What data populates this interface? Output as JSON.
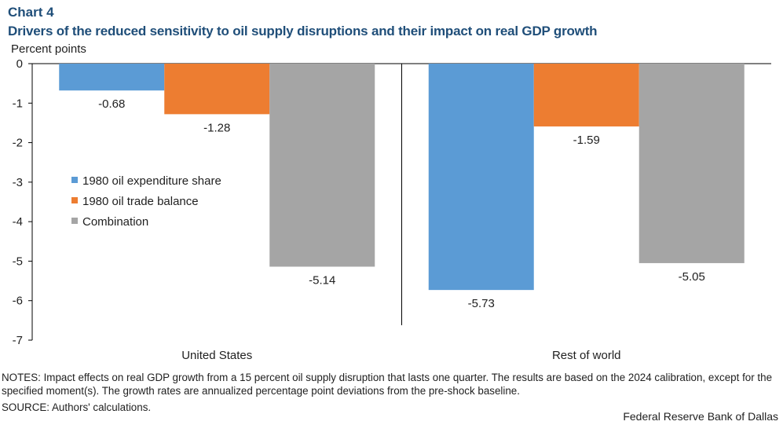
{
  "header": {
    "chart_number": "Chart 4",
    "title": "Drivers of the reduced sensitivity to oil supply disruptions and their impact on real GDP growth"
  },
  "footer": {
    "notes": "NOTES: Impact effects on real GDP growth from a 15 percent oil supply disruption that lasts one quarter. The results are based on the 2024 calibration, except for the specified moment(s). The growth rates are annualized percentage point deviations from the pre-shock baseline.",
    "source": "SOURCE: Authors' calculations.",
    "credit": "Federal Reserve Bank of Dallas"
  },
  "chart_data": {
    "type": "bar",
    "title": "Drivers of the reduced sensitivity to oil supply disruptions and their impact on real GDP growth",
    "ylabel": "Percent points",
    "xlabel": "",
    "ylim": [
      -7,
      0
    ],
    "yticks": [
      0,
      -1,
      -2,
      -3,
      -4,
      -5,
      -6,
      -7
    ],
    "categories": [
      "United States",
      "Rest of world"
    ],
    "series": [
      {
        "name": "1980 oil expenditure share",
        "color": "#5b9bd5",
        "values": [
          -0.68,
          -5.73
        ]
      },
      {
        "name": "1980 oil trade balance",
        "color": "#ed7d31",
        "values": [
          -1.28,
          -1.59
        ]
      },
      {
        "name": "Combination",
        "color": "#a5a5a5",
        "values": [
          -5.14,
          -5.05
        ]
      }
    ],
    "value_labels": [
      [
        "-0.68",
        "-5.73"
      ],
      [
        "-1.28",
        "-1.59"
      ],
      [
        "-5.14",
        "-5.05"
      ]
    ],
    "legend_position": "left-middle",
    "grid": false
  }
}
